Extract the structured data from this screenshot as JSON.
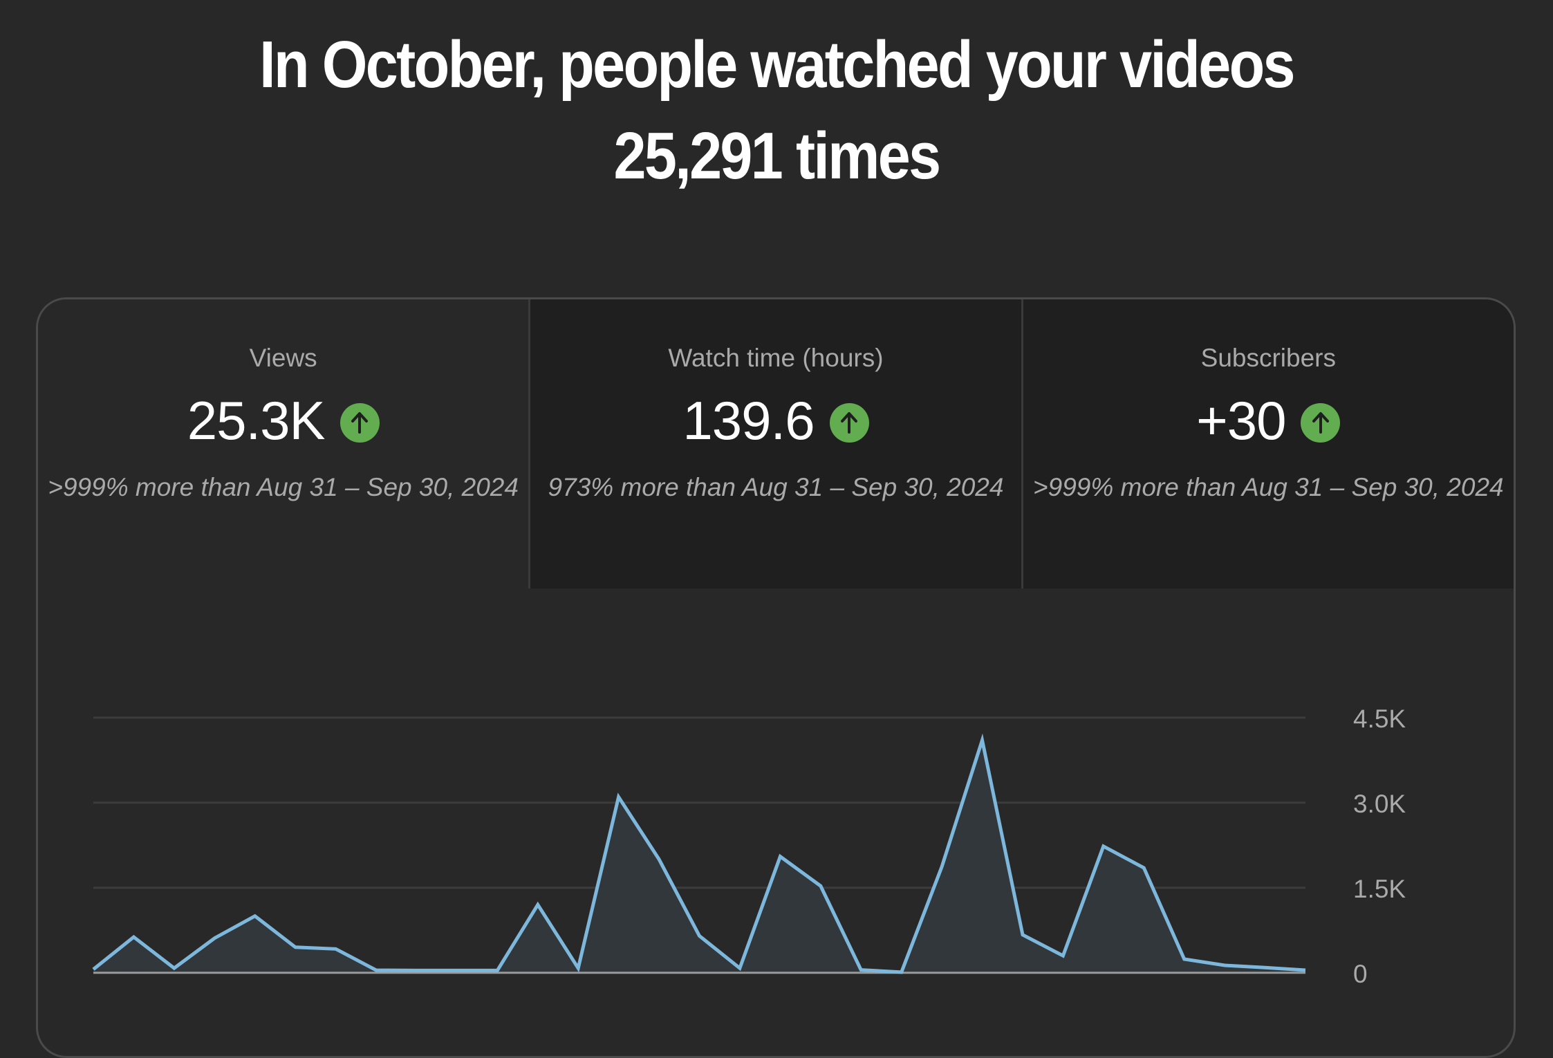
{
  "headline": {
    "line1": "In October, people watched your videos",
    "line2": "25,291 times"
  },
  "metrics": [
    {
      "label": "Views",
      "value": "25.3K",
      "trend_icon": "arrow-up-circle-icon",
      "comparison": ">999% more than Aug 31 – Sep 30, 2024",
      "selected": true
    },
    {
      "label": "Watch time (hours)",
      "value": "139.6",
      "trend_icon": "arrow-up-circle-icon",
      "comparison": "973% more than Aug 31 – Sep 30, 2024",
      "selected": false
    },
    {
      "label": "Subscribers",
      "value": "+30",
      "trend_icon": "arrow-up-circle-icon",
      "comparison": ">999% more than Aug 31 – Sep 30, 2024",
      "selected": false
    }
  ],
  "colors": {
    "background": "#282828",
    "line": "#7db8dc",
    "area": "#32373c",
    "trend_up": "#62ad50",
    "grid": "#3c3c3c",
    "baseline": "#9a9a9a"
  },
  "chart_data": {
    "type": "area",
    "title": "Views",
    "xlabel": "",
    "ylabel": "",
    "x": [
      1,
      2,
      3,
      4,
      5,
      6,
      7,
      8,
      9,
      10,
      11,
      12,
      13,
      14,
      15,
      16,
      17,
      18,
      19,
      20,
      21,
      22,
      23,
      24,
      25,
      26,
      27,
      28,
      29,
      30,
      31
    ],
    "series": [
      {
        "name": "Views",
        "values": [
          60,
          630,
          80,
          610,
          1000,
          450,
          420,
          45,
          40,
          40,
          40,
          1200,
          80,
          3100,
          2000,
          650,
          80,
          2050,
          1530,
          50,
          10,
          1870,
          4100,
          670,
          300,
          2230,
          1850,
          240,
          130,
          90,
          45
        ]
      }
    ],
    "y_ticks": [
      "0",
      "1.5K",
      "3.0K",
      "4.5K"
    ],
    "y_tick_values": [
      0,
      1500,
      3000,
      4500
    ],
    "ylim": [
      0,
      4500
    ],
    "grid": true,
    "y_axis_position": "right",
    "legend": "none"
  }
}
